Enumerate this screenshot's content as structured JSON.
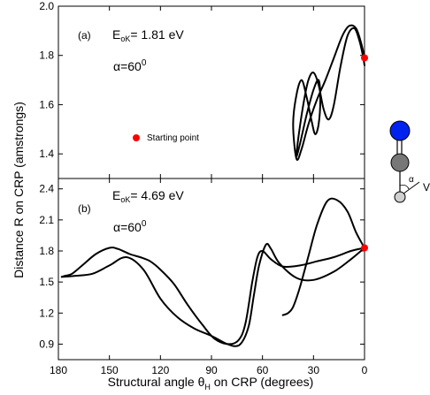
{
  "chart_data": [
    {
      "type": "line",
      "panel_label": "(a)",
      "annotation": {
        "E_prefix": "E",
        "E_sub": "oK",
        "E_value": "= 1.81 eV",
        "alpha_prefix": "α=60",
        "alpha_sup": "0"
      },
      "ylim": [
        1.3,
        2.0
      ],
      "yticks": [
        "1.4",
        "1.6",
        "1.8",
        "2.0"
      ],
      "xlim": [
        180,
        0
      ],
      "start_point": {
        "x": 0,
        "y": 1.79
      },
      "legend_label": "Starting point",
      "series": [
        {
          "x": [
            0,
            2,
            5,
            9,
            13,
            18,
            23,
            28,
            33,
            37,
            40,
            42,
            40,
            37,
            34,
            31,
            29,
            27,
            26,
            27,
            30,
            34,
            38,
            40,
            39,
            36,
            33,
            30,
            27,
            24,
            21,
            18,
            14,
            10,
            6,
            3,
            1,
            0
          ],
          "y": [
            1.79,
            1.85,
            1.91,
            1.92,
            1.88,
            1.79,
            1.7,
            1.62,
            1.52,
            1.42,
            1.38,
            1.52,
            1.64,
            1.7,
            1.63,
            1.53,
            1.48,
            1.52,
            1.62,
            1.7,
            1.66,
            1.56,
            1.44,
            1.39,
            1.46,
            1.6,
            1.7,
            1.73,
            1.68,
            1.58,
            1.54,
            1.6,
            1.76,
            1.88,
            1.91,
            1.86,
            1.8,
            1.76
          ]
        }
      ]
    },
    {
      "type": "line",
      "panel_label": "(b)",
      "annotation": {
        "E_prefix": "E",
        "E_sub": "oK",
        "E_value": "= 4.69 eV",
        "alpha_prefix": "α=60",
        "alpha_sup": "0"
      },
      "ylim": [
        0.75,
        2.5
      ],
      "yticks": [
        "0.9",
        "1.2",
        "1.5",
        "1.8",
        "2.1",
        "2.4"
      ],
      "xlim": [
        180,
        0
      ],
      "xticks": [
        "180",
        "150",
        "120",
        "90",
        "60",
        "30",
        "0"
      ],
      "start_point": {
        "x": 0,
        "y": 1.83
      },
      "series": [
        {
          "x": [
            0,
            5,
            10,
            16,
            22,
            28,
            33,
            38,
            42,
            45,
            48
          ],
          "y": [
            1.83,
            1.98,
            2.18,
            2.29,
            2.28,
            2.05,
            1.75,
            1.45,
            1.26,
            1.2,
            1.18
          ]
        },
        {
          "x": [
            0,
            8,
            18,
            28,
            38,
            48,
            55,
            60,
            63,
            66,
            70,
            74,
            80,
            88,
            95,
            104,
            112,
            120,
            126,
            132,
            138,
            145,
            150,
            158,
            166,
            172,
            176,
            178
          ],
          "y": [
            1.83,
            1.8,
            1.74,
            1.7,
            1.66,
            1.65,
            1.72,
            1.8,
            1.74,
            1.5,
            1.1,
            0.94,
            0.9,
            0.95,
            1.08,
            1.28,
            1.48,
            1.62,
            1.7,
            1.74,
            1.77,
            1.82,
            1.83,
            1.77,
            1.66,
            1.58,
            1.56,
            1.55
          ]
        },
        {
          "x": [
            0,
            8,
            18,
            30,
            40,
            50,
            55,
            58,
            62,
            65,
            68,
            72,
            76,
            82,
            90,
            100,
            110,
            120,
            130,
            140,
            150,
            160,
            170,
            178
          ],
          "y": [
            1.83,
            1.72,
            1.6,
            1.52,
            1.54,
            1.68,
            1.82,
            1.86,
            1.66,
            1.38,
            1.08,
            0.92,
            0.88,
            0.91,
            0.98,
            1.05,
            1.16,
            1.34,
            1.62,
            1.74,
            1.66,
            1.58,
            1.56,
            1.55
          ]
        }
      ]
    }
  ],
  "ylabel": "Distance R on CRP (amstrongs)",
  "xlabel": {
    "prefix": "Structural angle θ",
    "sub": "H",
    "suffix": " on CRP (degrees)"
  },
  "molecule": {
    "alpha_label": "α",
    "v_label": "V"
  },
  "colors": {
    "start": "#ff0000",
    "atom_top": "#0022ee",
    "atom_mid": "#777777",
    "atom_bottom": "#d0d0d0"
  }
}
